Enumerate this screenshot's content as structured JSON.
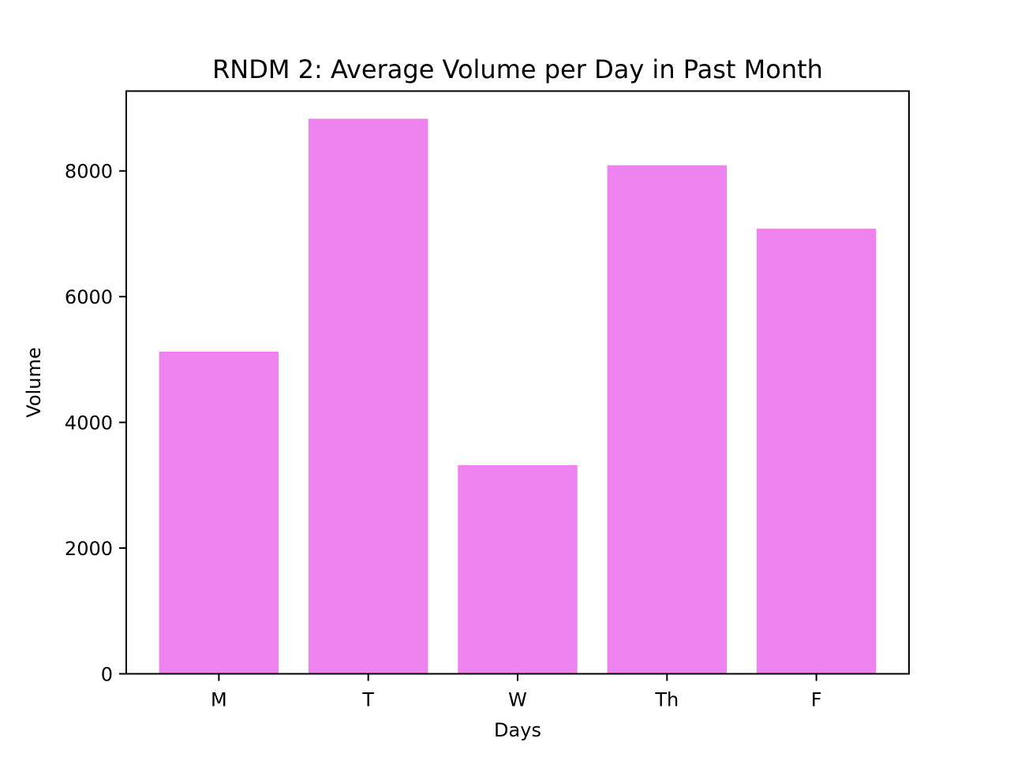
{
  "chart_data": {
    "type": "bar",
    "title": "RNDM 2: Average Volume per Day in Past Month",
    "xlabel": "Days",
    "ylabel": "Volume",
    "categories": [
      "M",
      "T",
      "W",
      "Th",
      "F"
    ],
    "values": [
      5125,
      8830,
      3320,
      8090,
      7080
    ],
    "ylim": [
      0,
      9270
    ],
    "yticks": [
      0,
      2000,
      4000,
      6000,
      8000
    ],
    "ytick_labels": [
      "0",
      "2000",
      "4000",
      "6000",
      "8000"
    ],
    "bar_color": "#ee82ee",
    "grid": false,
    "legend": "none"
  }
}
